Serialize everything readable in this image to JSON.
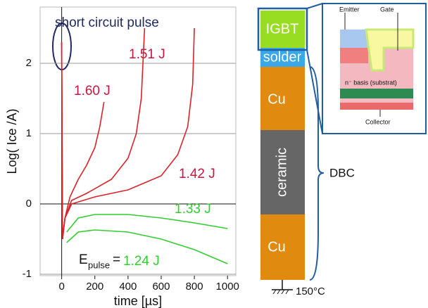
{
  "chart_data": {
    "type": "line",
    "xlabel": "time [µs]",
    "ylabel": "Log( Ice /A)",
    "annotation": "short circuit pulse",
    "pulse_symbol": "E",
    "pulse_subscript": "pulse",
    "pulse_equals": "=",
    "xlim": [
      -130,
      1050
    ],
    "xticks": [
      0,
      200,
      400,
      600,
      800,
      1000
    ],
    "ylim": [
      -1.02,
      2.8
    ],
    "yticks": [
      -1,
      0,
      1,
      2
    ],
    "grid": "y",
    "series": [
      {
        "name": "1.60 J",
        "color": "#d8232a",
        "label_color": "#cc1540",
        "x": [
          0,
          5,
          20,
          50,
          100,
          150,
          200,
          230,
          255
        ],
        "values": [
          2.3,
          -0.5,
          -0.2,
          0.1,
          0.35,
          0.55,
          0.8,
          1.1,
          1.45
        ]
      },
      {
        "name": "1.51 J",
        "color": "#d8232a",
        "label_color": "#cc1540",
        "x": [
          0,
          5,
          20,
          60,
          150,
          300,
          400,
          450,
          480,
          500
        ],
        "values": [
          2.3,
          -0.5,
          -0.2,
          0.05,
          0.15,
          0.35,
          0.65,
          1.0,
          1.5,
          2.5
        ]
      },
      {
        "name": "1.42 J",
        "color": "#d8232a",
        "label_color": "#cc1540",
        "x": [
          0,
          5,
          20,
          60,
          200,
          400,
          600,
          700,
          760,
          790,
          800
        ],
        "values": [
          2.3,
          -0.5,
          -0.2,
          0.0,
          0.1,
          0.2,
          0.4,
          0.7,
          1.1,
          1.7,
          2.5
        ]
      },
      {
        "name": "1.33 J",
        "color": "#33cc33",
        "label_color": "#33cc33",
        "x": [
          30,
          100,
          200,
          400,
          600,
          800,
          1000
        ],
        "values": [
          -0.4,
          -0.2,
          -0.15,
          -0.15,
          -0.2,
          -0.27,
          -0.35
        ]
      },
      {
        "name": "1.24 J",
        "color": "#33cc33",
        "label_color": "#33cc33",
        "x": [
          30,
          100,
          200,
          400,
          600,
          800,
          1000
        ],
        "values": [
          -0.55,
          -0.4,
          -0.37,
          -0.4,
          -0.5,
          -0.65,
          -0.85
        ]
      }
    ]
  },
  "diagram": {
    "layers": [
      "IGBT",
      "solder",
      "Cu",
      "ceramic",
      "Cu"
    ],
    "dbc_label": "DBC",
    "temperature": "150°C",
    "inset": {
      "emitter": "Emitter",
      "gate": "Gate",
      "basis": "n⁻ basis (substrat)",
      "collector": "Collector"
    }
  }
}
